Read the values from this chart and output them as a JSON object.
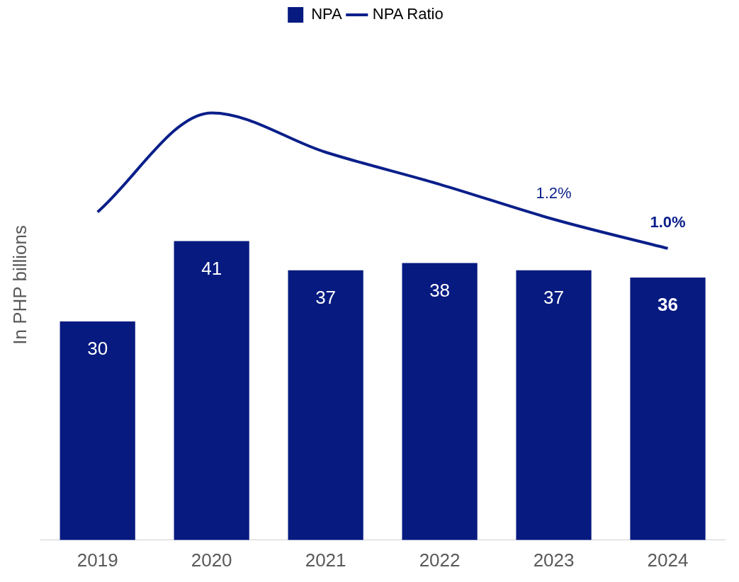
{
  "chart_data": {
    "type": "bar",
    "ylabel": "In PHP billions",
    "categories": [
      "2019",
      "2020",
      "2021",
      "2022",
      "2023",
      "2024"
    ],
    "series": [
      {
        "name": "NPA",
        "color": "#061a80",
        "values": [
          30,
          41,
          37,
          38,
          37,
          36
        ],
        "data_labels": true
      },
      {
        "name": "NPA Ratio",
        "type": "line",
        "axis": "y2",
        "color": "#0a1f8a",
        "values": [
          1.25,
          1.93,
          1.66,
          1.44,
          1.2,
          1.0
        ],
        "value_labels": [
          null,
          null,
          null,
          null,
          "1.2%",
          "1.0%"
        ],
        "marker": "none"
      }
    ],
    "tick_labels": "x",
    "grid": false,
    "legend": "top"
  }
}
